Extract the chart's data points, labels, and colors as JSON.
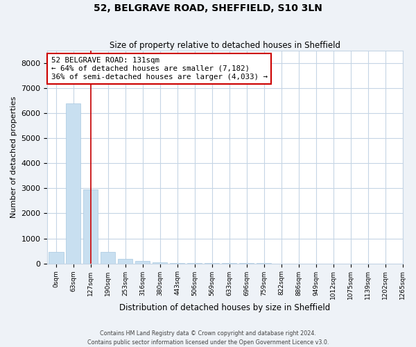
{
  "title": "52, BELGRAVE ROAD, SHEFFIELD, S10 3LN",
  "subtitle": "Size of property relative to detached houses in Sheffield",
  "xlabel": "Distribution of detached houses by size in Sheffield",
  "ylabel": "Number of detached properties",
  "bar_values": [
    450,
    6400,
    2950,
    450,
    170,
    90,
    50,
    30,
    18,
    10,
    6,
    4,
    3,
    2,
    2,
    1,
    1,
    1,
    0,
    0
  ],
  "bar_color": "#c8dff0",
  "bar_edge_color": "#a8c8e0",
  "x_labels": [
    "0sqm",
    "63sqm",
    "127sqm",
    "190sqm",
    "253sqm",
    "316sqm",
    "380sqm",
    "443sqm",
    "506sqm",
    "569sqm",
    "633sqm",
    "696sqm",
    "759sqm",
    "822sqm",
    "886sqm",
    "949sqm",
    "1012sqm",
    "1075sqm",
    "1139sqm",
    "1202sqm",
    "1265sqm"
  ],
  "property_line_x": 2.0,
  "property_line_color": "#cc0000",
  "annotation_line1": "52 BELGRAVE ROAD: 131sqm",
  "annotation_line2": "← 64% of detached houses are smaller (7,182)",
  "annotation_line3": "36% of semi-detached houses are larger (4,033) →",
  "annotation_box_color": "#cc0000",
  "ylim": [
    0,
    8500
  ],
  "yticks": [
    0,
    1000,
    2000,
    3000,
    4000,
    5000,
    6000,
    7000,
    8000
  ],
  "footer_line1": "Contains HM Land Registry data © Crown copyright and database right 2024.",
  "footer_line2": "Contains public sector information licensed under the Open Government Licence v3.0.",
  "bg_color": "#eef2f7",
  "plot_bg_color": "#ffffff",
  "grid_color": "#c5d5e5"
}
